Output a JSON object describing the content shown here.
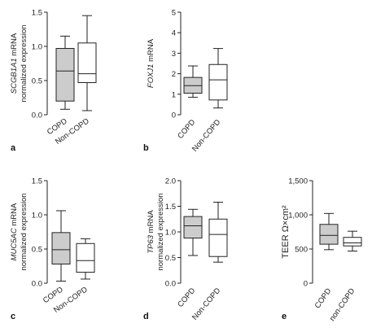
{
  "panels": [
    {
      "letter": "a",
      "ylabel_gene": "SCGB1A1",
      "ylabel_suffix": " mRNA",
      "ylabel_line2": "normalized expression",
      "chart_data": {
        "type": "box",
        "categories": [
          "COPD",
          "Non-COPD"
        ],
        "ylim": [
          0,
          1.5
        ],
        "yticks": [
          "0.0",
          "0.5",
          "1.0",
          "1.5"
        ],
        "ytick_values": [
          0,
          0.5,
          1.0,
          1.5
        ],
        "boxes": [
          {
            "category": "COPD",
            "min": 0.08,
            "q1": 0.2,
            "median": 0.64,
            "q3": 0.97,
            "max": 1.15,
            "fill": "#cccccc"
          },
          {
            "category": "Non-COPD",
            "min": 0.06,
            "q1": 0.47,
            "median": 0.6,
            "q3": 1.05,
            "max": 1.45,
            "fill": "#ffffff"
          }
        ]
      }
    },
    {
      "letter": "b",
      "ylabel_gene": "FOXJ1",
      "ylabel_suffix": " mRNA",
      "ylabel_line2": "",
      "chart_data": {
        "type": "box",
        "categories": [
          "COPD",
          "Non-COPD"
        ],
        "ylim": [
          0,
          5
        ],
        "yticks": [
          "0",
          "1",
          "2",
          "3",
          "4",
          "5"
        ],
        "ytick_values": [
          0,
          1,
          2,
          3,
          4,
          5
        ],
        "boxes": [
          {
            "category": "COPD",
            "min": 0.85,
            "q1": 1.05,
            "median": 1.42,
            "q3": 1.82,
            "max": 2.38,
            "fill": "#cccccc"
          },
          {
            "category": "Non-COPD",
            "min": 0.33,
            "q1": 0.72,
            "median": 1.7,
            "q3": 2.45,
            "max": 3.23,
            "fill": "#ffffff"
          }
        ]
      }
    },
    {
      "letter": "c",
      "ylabel_gene": "MUC5AC",
      "ylabel_suffix": " mRNA",
      "ylabel_line2": "normalized expression",
      "chart_data": {
        "type": "box",
        "categories": [
          "COPD",
          "Non-COPD"
        ],
        "ylim": [
          0,
          1.5
        ],
        "yticks": [
          "0.0",
          "0.5",
          "1.0",
          "1.5"
        ],
        "ytick_values": [
          0,
          0.5,
          1.0,
          1.5
        ],
        "boxes": [
          {
            "category": "COPD",
            "min": 0.03,
            "q1": 0.28,
            "median": 0.49,
            "q3": 0.74,
            "max": 1.06,
            "fill": "#cccccc"
          },
          {
            "category": "Non-COPD",
            "min": 0.06,
            "q1": 0.16,
            "median": 0.33,
            "q3": 0.58,
            "max": 0.65,
            "fill": "#ffffff"
          }
        ]
      }
    },
    {
      "letter": "d",
      "ylabel_gene": "TP63",
      "ylabel_suffix": " mRNA",
      "ylabel_line2": "normalized expression",
      "chart_data": {
        "type": "box",
        "categories": [
          "COPD",
          "Non-COPD"
        ],
        "ylim": [
          0,
          2
        ],
        "yticks": [
          "0.0",
          "0.5",
          "1.0",
          "1.5",
          "2.0"
        ],
        "ytick_values": [
          0,
          0.5,
          1.0,
          1.5,
          2.0
        ],
        "boxes": [
          {
            "category": "COPD",
            "min": 0.54,
            "q1": 0.88,
            "median": 1.12,
            "q3": 1.3,
            "max": 1.44,
            "fill": "#cccccc"
          },
          {
            "category": "Non-COPD",
            "min": 0.41,
            "q1": 0.52,
            "median": 0.95,
            "q3": 1.25,
            "max": 1.58,
            "fill": "#ffffff"
          }
        ]
      }
    },
    {
      "letter": "e",
      "ylabel_gene": "",
      "ylabel_suffix": "TEER Ω×cm²",
      "ylabel_line2": "",
      "chart_data": {
        "type": "box",
        "categories": [
          "COPD",
          "non-COPD"
        ],
        "ylim": [
          0,
          1500
        ],
        "yticks": [
          "0",
          "500",
          "1,000",
          "1,500"
        ],
        "ytick_values": [
          0,
          500,
          1000,
          1500
        ],
        "boxes": [
          {
            "category": "COPD",
            "min": 490,
            "q1": 570,
            "median": 700,
            "q3": 860,
            "max": 1020,
            "fill": "#cccccc"
          },
          {
            "category": "non-COPD",
            "min": 470,
            "q1": 545,
            "median": 590,
            "q3": 670,
            "max": 760,
            "fill": "#ffffff"
          }
        ]
      }
    }
  ]
}
